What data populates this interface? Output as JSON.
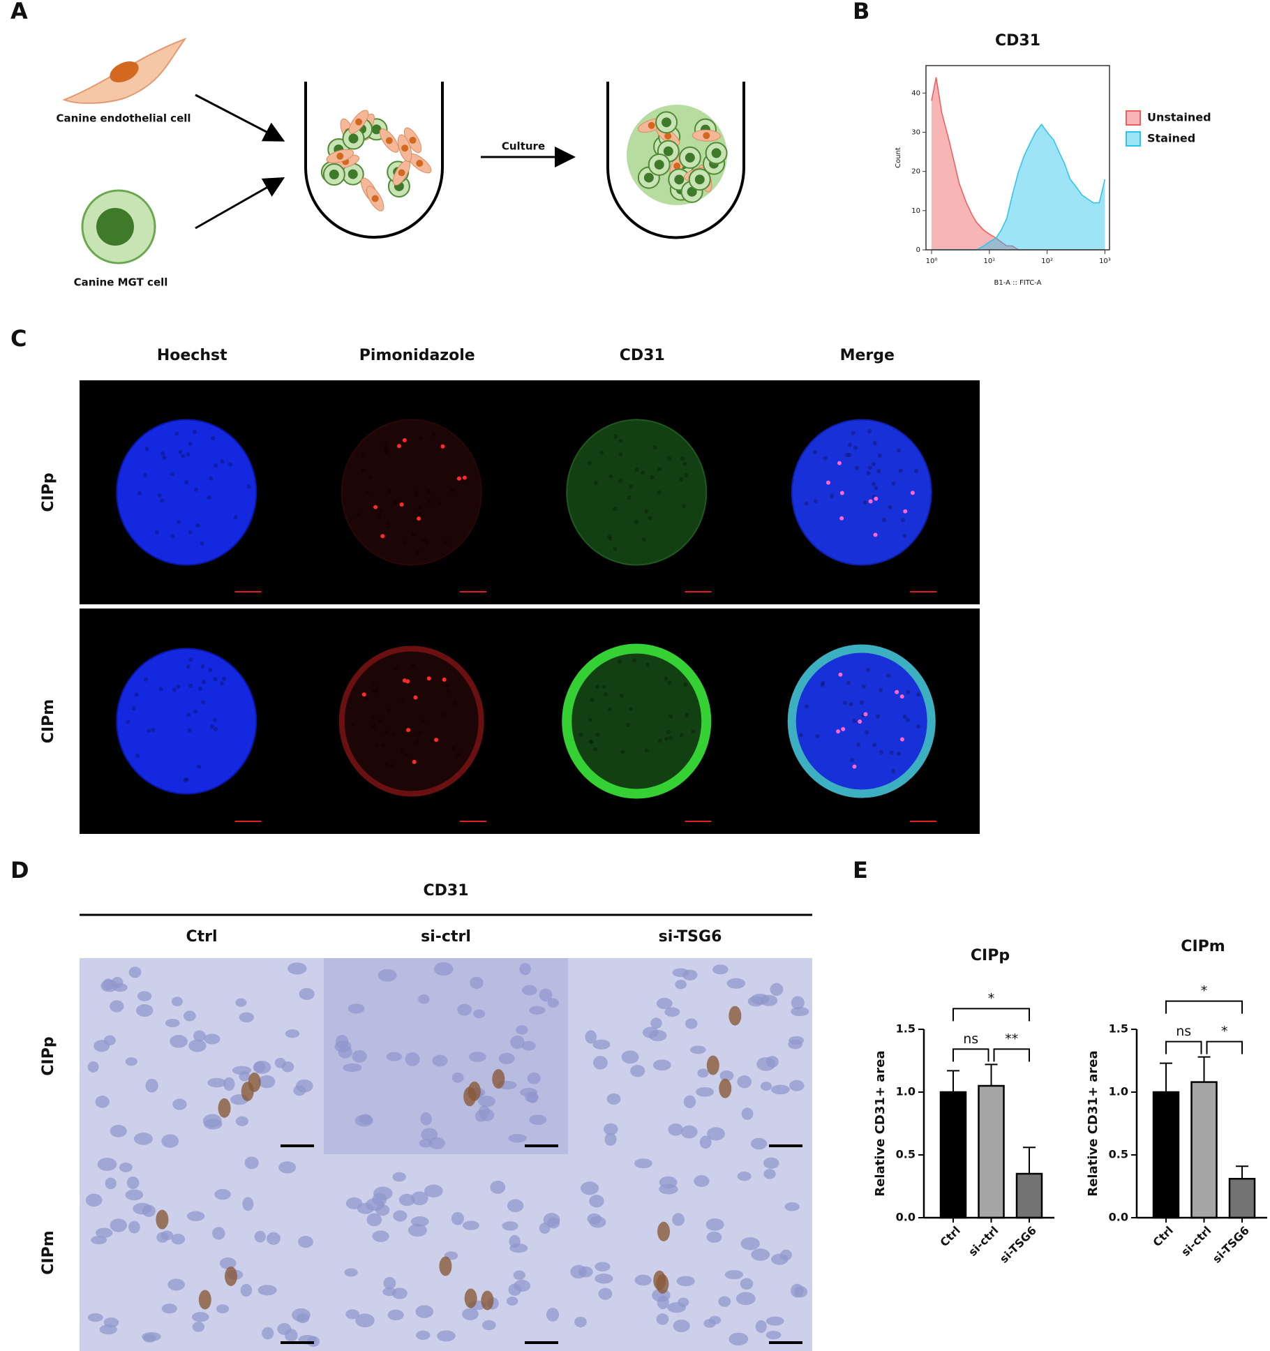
{
  "panel_labels": [
    "A",
    "B",
    "C",
    "D",
    "E"
  ],
  "panel_a": {
    "cell_1": "Canine endothelial cell",
    "cell_2": "Canine MGT cell",
    "step": "Culture"
  },
  "panel_c": {
    "columns": [
      "Hoechst",
      "Pimonidazole",
      "CD31",
      "Merge"
    ],
    "rows": [
      "CIPp",
      "CIPm"
    ]
  },
  "panel_d": {
    "title": "CD31",
    "columns": [
      "Ctrl",
      "si-ctrl",
      "si-TSG6"
    ],
    "rows": [
      "CIPp",
      "CIPm"
    ]
  },
  "chart_data": [
    {
      "type": "area",
      "title": "CD31",
      "x_label": "B1-A :: FITC-A",
      "y_label": "Count",
      "x_scale": "log",
      "x": [
        1,
        1.2,
        1.5,
        2,
        2.5,
        3,
        4,
        5,
        6,
        8,
        10,
        13,
        16,
        20,
        25,
        32,
        40,
        50,
        63,
        80,
        100,
        130,
        160,
        200,
        250,
        320,
        400,
        500,
        630,
        800,
        1000
      ],
      "series": [
        {
          "name": "Unstained",
          "color": "#f05a5a",
          "values": [
            38,
            44,
            35,
            28,
            22,
            17,
            12,
            9,
            7,
            5,
            4,
            3,
            2,
            1,
            1,
            0,
            0,
            0,
            0,
            0,
            0,
            0,
            0,
            0,
            0,
            0,
            0,
            0,
            0,
            0,
            0
          ]
        },
        {
          "name": "Stained",
          "color": "#29c4ee",
          "values": [
            0,
            0,
            0,
            0,
            0,
            0,
            0,
            0,
            0,
            1,
            2,
            3,
            5,
            8,
            14,
            20,
            24,
            27,
            30,
            32,
            30,
            28,
            25,
            22,
            18,
            16,
            14,
            13,
            12,
            12,
            18
          ]
        }
      ],
      "xlim": [
        0.8,
        1200
      ],
      "xticks": [
        {
          "value": 1,
          "label": "10⁰"
        },
        {
          "value": 10,
          "label": "10¹"
        },
        {
          "value": 100,
          "label": "10²"
        },
        {
          "value": 1000,
          "label": "10³"
        }
      ],
      "ylim": [
        0,
        47
      ],
      "yticks": [
        0,
        10,
        20,
        30,
        40
      ],
      "legend": "right"
    },
    {
      "type": "bar",
      "title": "CIPp",
      "y_label": "Relative CD31+ area",
      "categories": [
        "Ctrl",
        "si-ctrl",
        "si-TSG6"
      ],
      "values": [
        1.0,
        1.05,
        0.35
      ],
      "errors": [
        0.17,
        0.17,
        0.21
      ],
      "colors": [
        "#000000",
        "#a6a6a6",
        "#737373"
      ],
      "ylim": [
        0,
        1.5
      ],
      "yticks": [
        {
          "value": 0,
          "label": "0.0"
        },
        0.5,
        {
          "value": 1,
          "label": "1.0"
        },
        1.5
      ],
      "annotations": [
        "ns",
        "**",
        "*"
      ]
    },
    {
      "type": "bar",
      "title": "CIPm",
      "y_label": "Relative CD31+ area",
      "categories": [
        "Ctrl",
        "si-ctrl",
        "si-TSG6"
      ],
      "values": [
        1.0,
        1.08,
        0.31
      ],
      "errors": [
        0.23,
        0.2,
        0.1
      ],
      "colors": [
        "#000000",
        "#a6a6a6",
        "#737373"
      ],
      "ylim": [
        0,
        1.5
      ],
      "yticks": [
        {
          "value": 0,
          "label": "0.0"
        },
        0.5,
        {
          "value": 1,
          "label": "1.0"
        },
        1.5
      ],
      "annotations": [
        "ns",
        "*",
        "*"
      ]
    }
  ]
}
